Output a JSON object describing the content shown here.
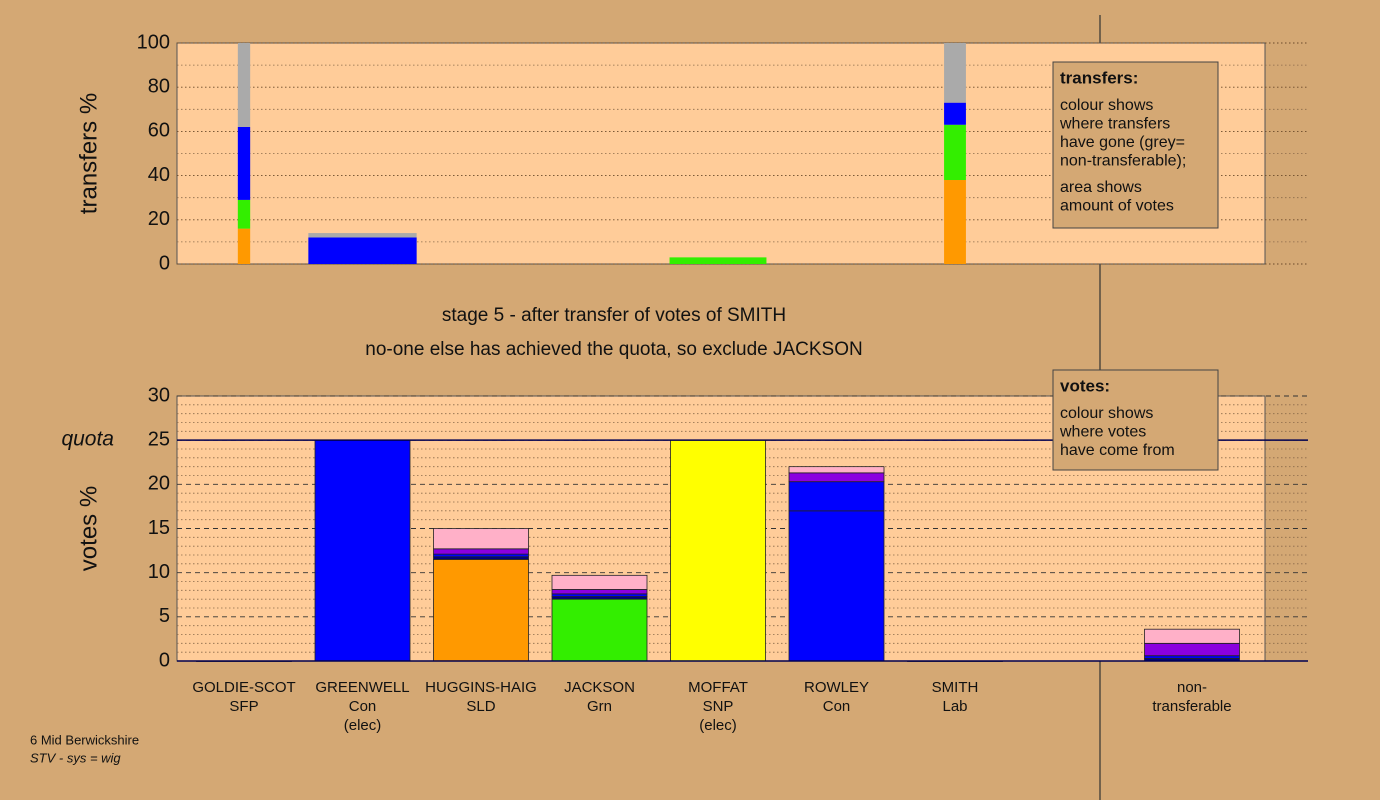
{
  "chart_data": [
    {
      "type": "stacked-bar",
      "ylabel": "transfers %",
      "ylim": [
        0,
        100
      ],
      "yticks": [
        0,
        20,
        40,
        60,
        80,
        100
      ],
      "grid": true,
      "widths": [
        0.13,
        1.14,
        null,
        null,
        1.02,
        null,
        0.23,
        null,
        null
      ],
      "series": [
        {
          "color": "#ff9900",
          "values": [
            16,
            null,
            null,
            null,
            null,
            null,
            38,
            null,
            null
          ]
        },
        {
          "color": "#33ee00",
          "values": [
            13,
            null,
            null,
            null,
            3,
            null,
            25,
            null,
            null
          ]
        },
        {
          "color": "#0000ff",
          "values": [
            33,
            12,
            null,
            null,
            null,
            null,
            10,
            null,
            null
          ]
        },
        {
          "color": "#aaaaaa",
          "values": [
            38,
            2,
            null,
            null,
            null,
            null,
            27,
            null,
            null
          ]
        }
      ],
      "note": {
        "title": "transfers:",
        "paragraphs": [
          [
            "colour shows",
            "where transfers",
            "have gone (grey=",
            "non-transferable);"
          ],
          [
            "area shows",
            "amount of votes"
          ]
        ]
      },
      "annotations": [
        "stage 5 - after transfer of votes of SMITH",
        "no-one else has achieved the quota, so exclude JACKSON"
      ]
    },
    {
      "type": "stacked-bar",
      "ylabel": "votes %",
      "ylim": [
        0,
        30
      ],
      "yticks": [
        0,
        5,
        10,
        15,
        20,
        25,
        30
      ],
      "grid": true,
      "quota": {
        "value": 25,
        "label": "quota"
      },
      "categories": [
        [
          "GOLDIE-SCOT",
          "SFP"
        ],
        [
          "GREENWELL",
          "Con",
          "(elec)"
        ],
        [
          "HUGGINS-HAIG",
          "SLD"
        ],
        [
          "JACKSON",
          "Grn"
        ],
        [
          "MOFFAT",
          "SNP",
          "(elec)"
        ],
        [
          "ROWLEY",
          "Con"
        ],
        [
          "SMITH",
          "Lab"
        ],
        null,
        [
          "non-",
          "transferable"
        ]
      ],
      "series": [
        {
          "colors": [
            "#000080",
            "#0000ff",
            "#ff9900",
            "#33ee00",
            "#ffff00",
            "#0000ff",
            "#000080",
            null,
            null
          ],
          "values": [
            0,
            25,
            11.5,
            7,
            25,
            17,
            0,
            null,
            null
          ]
        },
        {
          "color": "#000080",
          "values": [
            null,
            null,
            0.3,
            0.3,
            null,
            null,
            null,
            null,
            0.3
          ]
        },
        {
          "color": "#0000ff",
          "values": [
            null,
            null,
            0.3,
            0.3,
            null,
            3.3,
            null,
            null,
            0.3
          ]
        },
        {
          "color": "#8a00e0",
          "values": [
            null,
            null,
            0.6,
            0.5,
            null,
            1,
            null,
            null,
            1.4
          ]
        },
        {
          "color": "#ffb0c8",
          "values": [
            null,
            null,
            2.3,
            1.6,
            null,
            0.7,
            null,
            null,
            1.6
          ]
        }
      ],
      "note": {
        "title": "votes:",
        "paragraphs": [
          [
            "colour shows",
            "where votes",
            "have come from"
          ]
        ]
      }
    }
  ],
  "footer": [
    "6 Mid Berwickshire",
    "STV - sys = wig"
  ]
}
